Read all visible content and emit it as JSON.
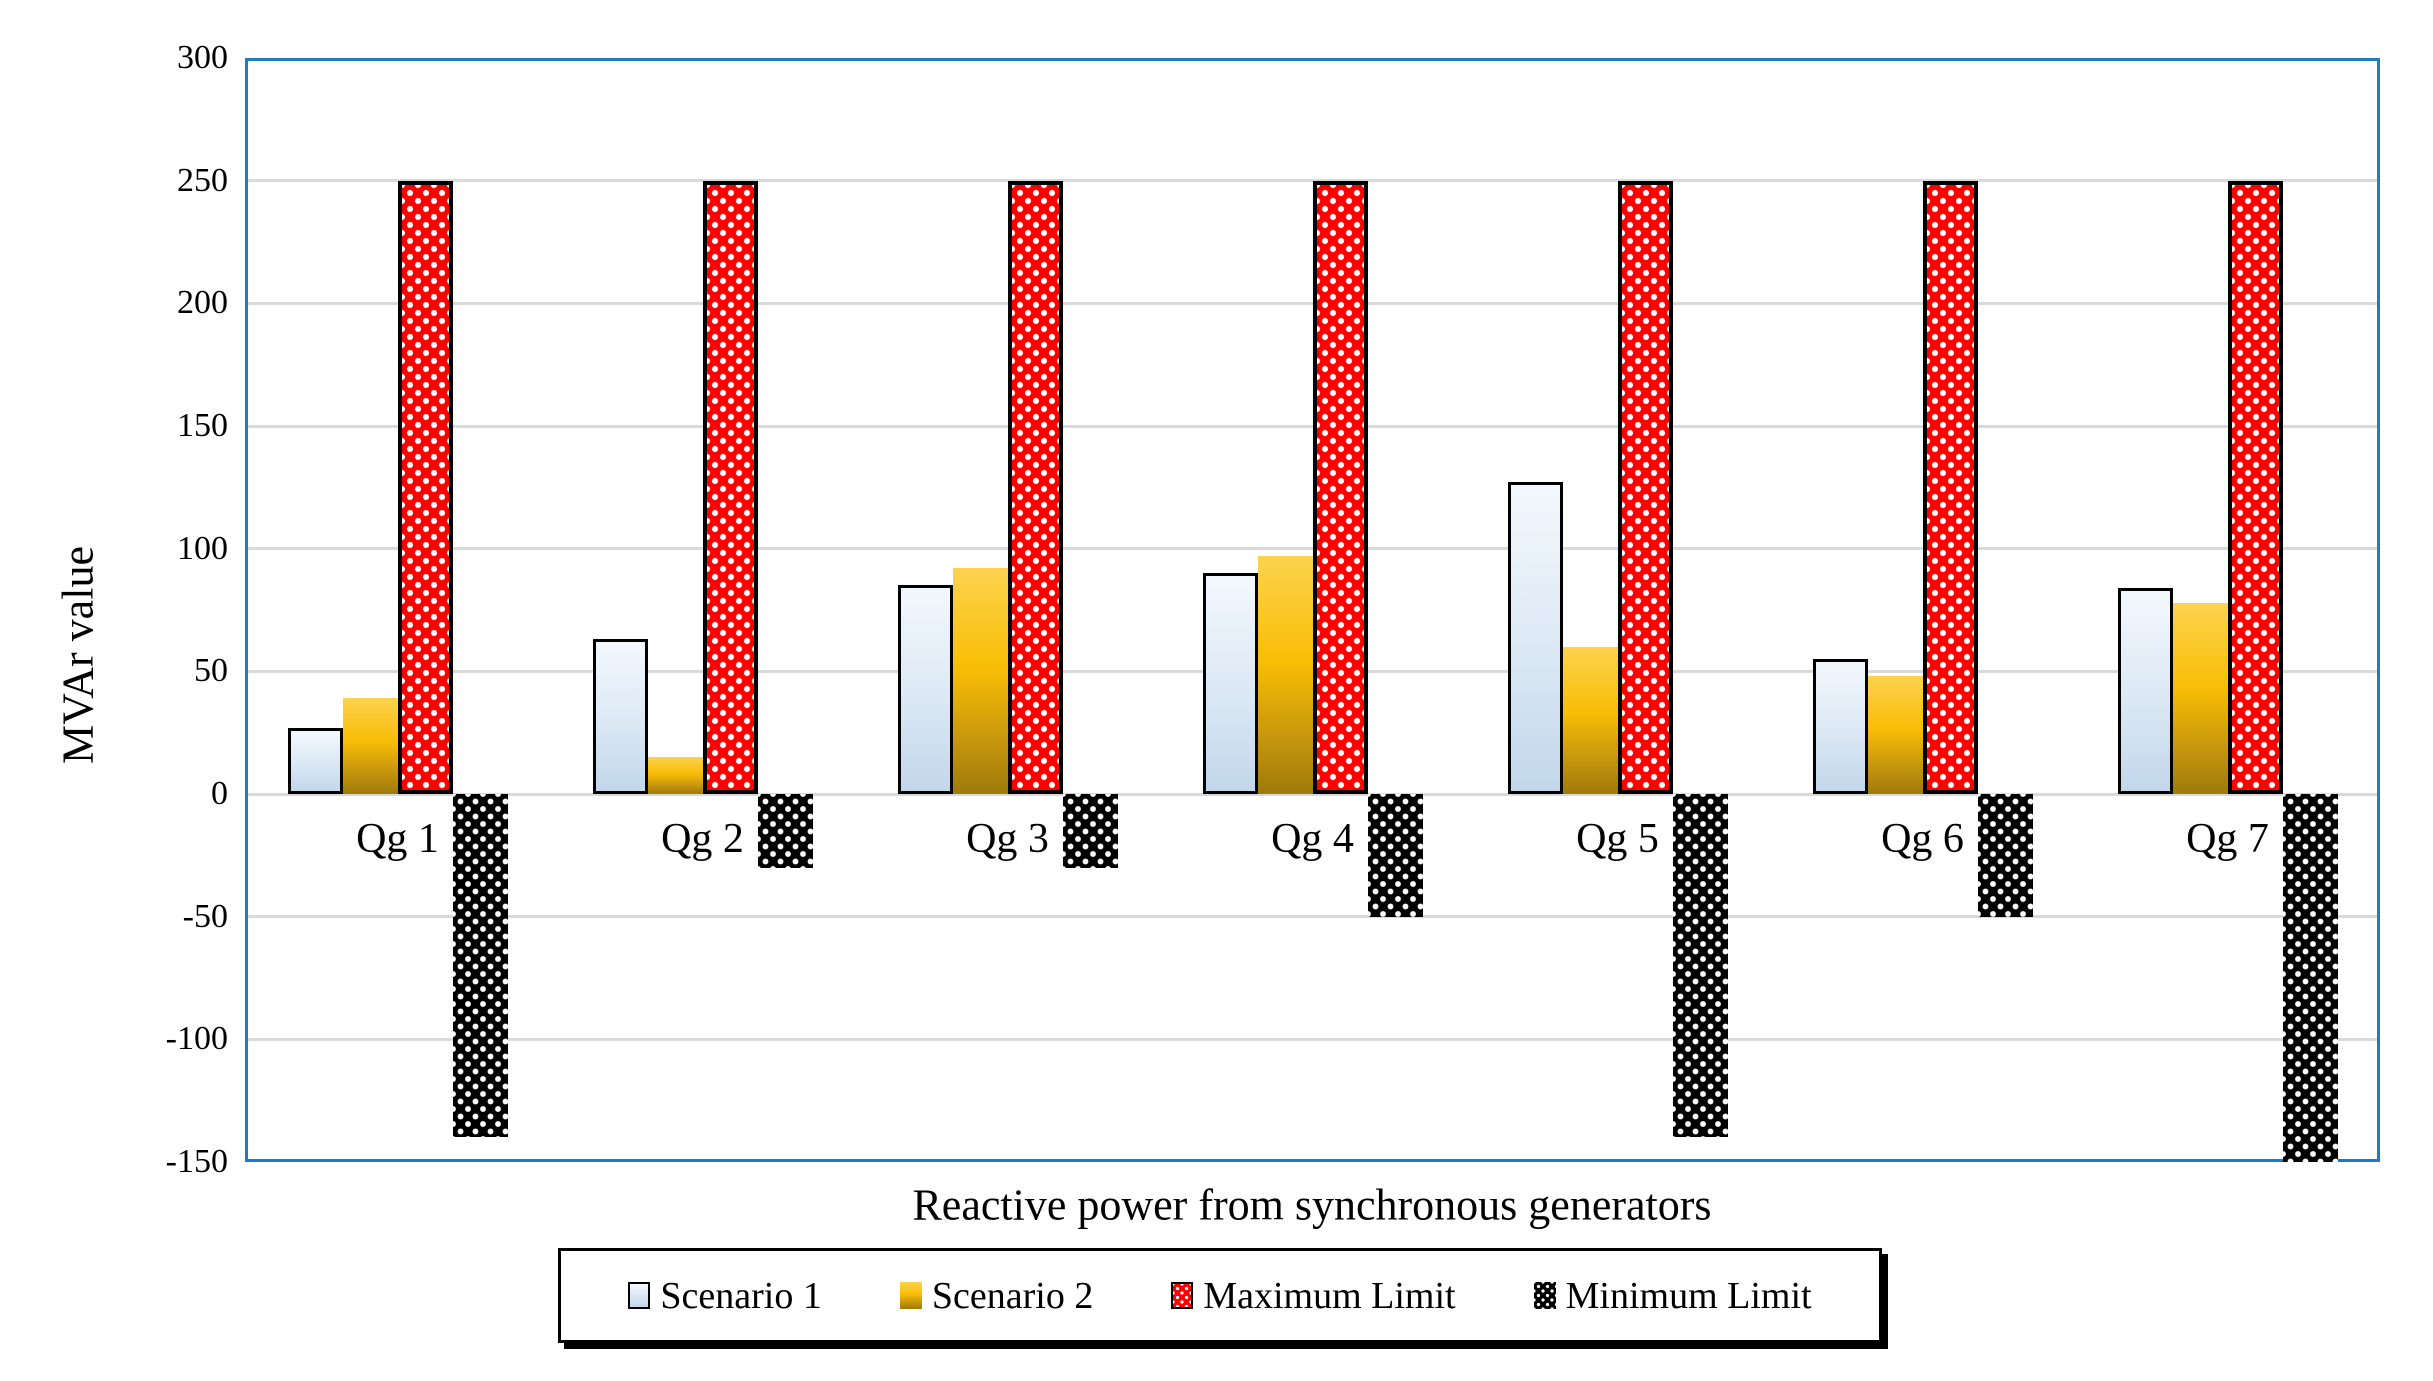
{
  "chart_data": {
    "type": "bar",
    "title": "",
    "xlabel": "Reactive power from synchronous generators",
    "ylabel": "MVAr value",
    "categories": [
      "Qg 1",
      "Qg 2",
      "Qg 3",
      "Qg 4",
      "Qg 5",
      "Qg 6",
      "Qg 7"
    ],
    "series": [
      {
        "name": "Scenario 1",
        "pattern": "light_blue_gradient",
        "values": [
          27,
          63,
          85,
          90,
          127,
          55,
          84
        ]
      },
      {
        "name": "Scenario 2",
        "pattern": "gold_gradient",
        "values": [
          39,
          15,
          92,
          97,
          60,
          48,
          78
        ]
      },
      {
        "name": "Maximum Limit",
        "pattern": "red_polka_dot",
        "values": [
          250,
          250,
          250,
          250,
          250,
          250,
          250
        ]
      },
      {
        "name": "Minimum Limit",
        "pattern": "black_polka_dot",
        "values": [
          -140,
          -30,
          -30,
          -50,
          -140,
          -50,
          -150
        ]
      }
    ],
    "ylim": [
      -150,
      300
    ],
    "ytick_step": 50,
    "yticks": [
      300,
      250,
      200,
      150,
      100,
      50,
      0,
      -50,
      -100,
      -150
    ],
    "grid": true,
    "legend_position": "bottom"
  },
  "legend": {
    "items": [
      {
        "label": "Scenario 1"
      },
      {
        "label": "Scenario 2"
      },
      {
        "label": "Maximum Limit"
      },
      {
        "label": "Minimum Limit"
      }
    ]
  },
  "colors": {
    "plot_border": "#1f7bc4",
    "gridline": "#d9d9d9",
    "scenario1_fill_top": "#f3f8fd",
    "scenario1_fill_bottom": "#c2d7eb",
    "scenario2_fill_top": "#fdd34f",
    "scenario2_fill_bottom": "#9e7a0a",
    "maximum_limit_fill": "#fe0000",
    "minimum_limit_fill": "#000000",
    "pattern_dot": "#ffffff",
    "bar_outline": "#000000"
  }
}
